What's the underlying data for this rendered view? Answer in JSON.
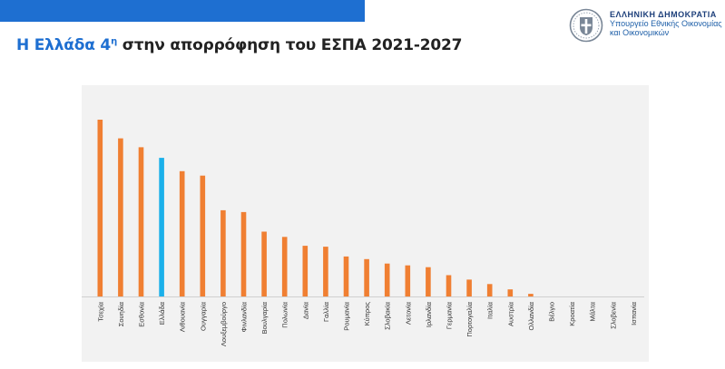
{
  "header": {
    "title_highlight": "Η Ελλάδα 4",
    "title_sup": "η",
    "title_rest": " στην απορρόφηση του ΕΣΠΑ 2021-2027",
    "org_line1": "ΕΛΛΗΝΙΚΗ ΔΗΜΟΚΡΑΤΙΑ",
    "org_line2": "Υπουργείο Εθνικής Οικονομίας",
    "org_line3": "και Οικονομικών"
  },
  "colors": {
    "bar": "#f07f32",
    "highlight_bar": "#1bb0ea",
    "topbar": "#1e6fd1"
  },
  "chart_data": {
    "type": "bar",
    "title": "",
    "xlabel": "",
    "ylabel": "",
    "highlight": "Ελλάδα",
    "grid": false,
    "categories": [
      "Τσεχία",
      "Σουηδία",
      "Εσθονία",
      "Ελλάδα",
      "Λιθουανία",
      "Ουγγαρία",
      "Λουξεμβούργο",
      "Φινλανδία",
      "Βουλγαρία",
      "Πολωνία",
      "Δανία",
      "Γαλλία",
      "Ρουμανία",
      "Κύπρος",
      "Σλοβακία",
      "Λετονία",
      "Ιρλανδία",
      "Γερμανία",
      "Πορτογαλία",
      "Ιταλία",
      "Αυστρία",
      "Ολλανδία",
      "Βέλγιο",
      "Κροατία",
      "Μάλτα",
      "Σλοβενία",
      "Ισπανία"
    ],
    "values": [
      19.9,
      17.8,
      16.8,
      15.6,
      14.1,
      13.6,
      9.7,
      9.5,
      7.3,
      6.7,
      5.7,
      5.6,
      4.5,
      4.2,
      3.7,
      3.5,
      3.3,
      2.4,
      1.9,
      1.4,
      0.8,
      0.3,
      0,
      0,
      0,
      0,
      0
    ],
    "ylim": [
      0,
      21
    ]
  }
}
